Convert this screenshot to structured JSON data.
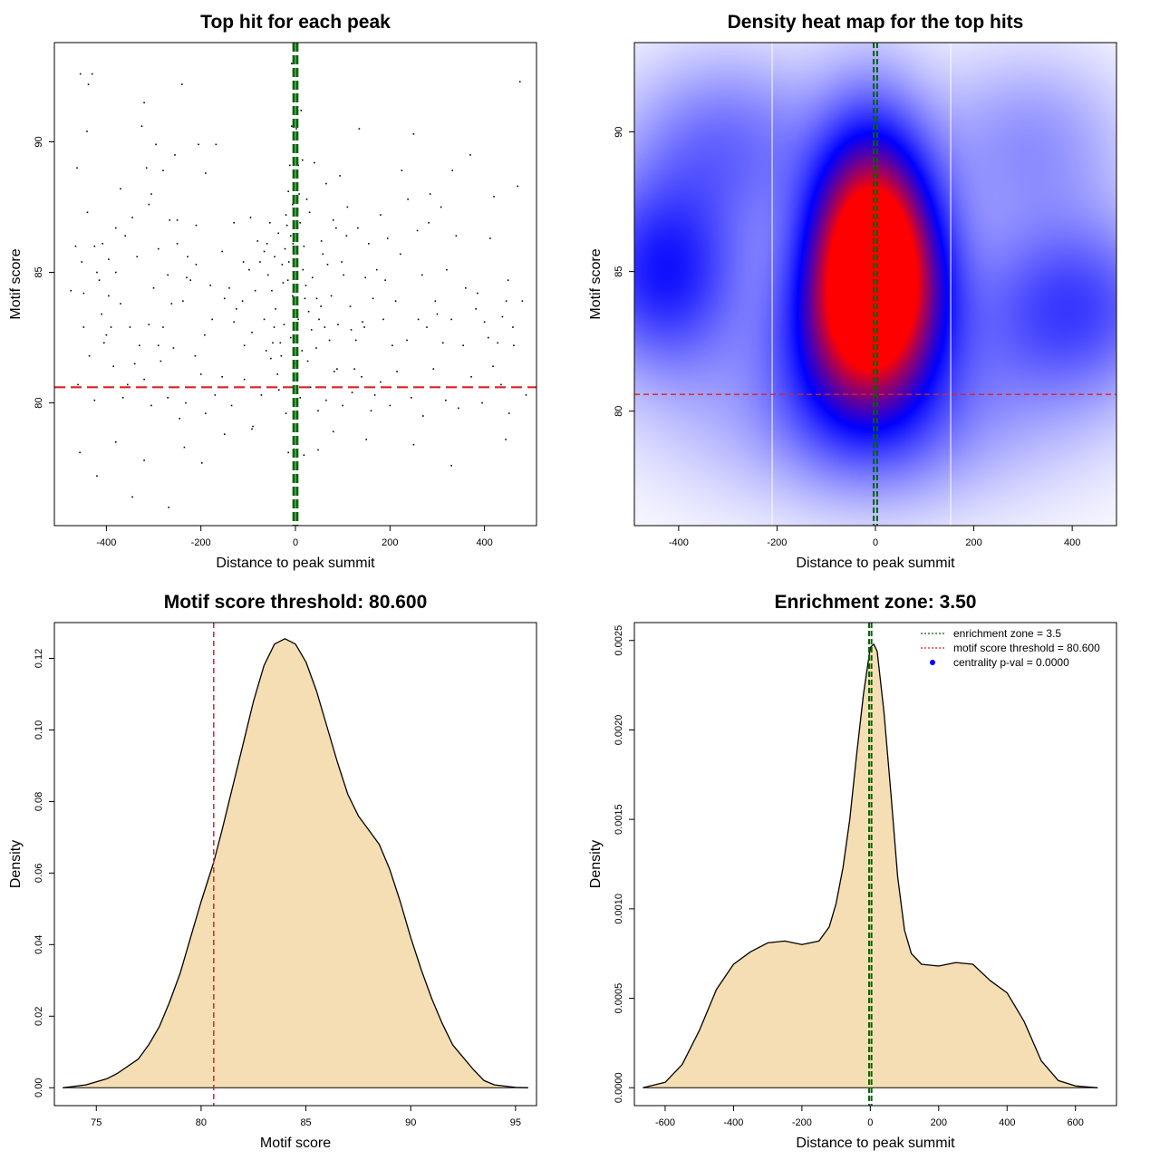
{
  "chart_data": [
    {
      "id": "scatter",
      "type": "scatter",
      "title": "Top hit for each peak",
      "xlabel": "Distance to peak summit",
      "ylabel": "Motif score",
      "xlim": [
        -510,
        510
      ],
      "ylim": [
        75.3,
        93.8
      ],
      "xticks": [
        -400,
        -200,
        0,
        200,
        400
      ],
      "yticks": [
        80,
        85,
        90
      ],
      "lines": {
        "zone_x": [
          -3.5,
          3.5
        ],
        "threshold_y": 80.6,
        "zone_color": "#006400",
        "threshold_color": "#dd2222"
      },
      "points": [
        [
          -455,
          92.6
        ],
        [
          -438,
          92.2
        ],
        [
          -430,
          92.6
        ],
        [
          -441,
          90.4
        ],
        [
          -462,
          89.0
        ],
        [
          -452,
          85.4
        ],
        [
          -440,
          87.3
        ],
        [
          -425,
          86.0
        ],
        [
          -420,
          85.0
        ],
        [
          -408,
          86.1
        ],
        [
          -395,
          84.1
        ],
        [
          -380,
          85.0
        ],
        [
          -370,
          88.2
        ],
        [
          -345,
          87.1
        ],
        [
          -325,
          90.6
        ],
        [
          -320,
          91.5
        ],
        [
          -315,
          89.0
        ],
        [
          -305,
          88.0
        ],
        [
          -295,
          89.9
        ],
        [
          -280,
          88.9
        ],
        [
          -266,
          87.0
        ],
        [
          -255,
          89.5
        ],
        [
          -250,
          87.0
        ],
        [
          -240,
          92.2
        ],
        [
          -228,
          85.6
        ],
        [
          -210,
          85.3
        ],
        [
          -205,
          89.9
        ],
        [
          -190,
          88.8
        ],
        [
          -180,
          84.5
        ],
        [
          -168,
          89.9
        ],
        [
          -155,
          85.8
        ],
        [
          -140,
          84.4
        ],
        [
          -125,
          83.6
        ],
        [
          -108,
          82.2
        ],
        [
          -98,
          85.1
        ],
        [
          -85,
          84.3
        ],
        [
          -75,
          85.4
        ],
        [
          -60,
          86.1
        ],
        [
          -58,
          84.9
        ],
        [
          -50,
          84.3
        ],
        [
          -48,
          82.3
        ],
        [
          -42,
          83.6
        ],
        [
          -38,
          81.1
        ],
        [
          -30,
          81.8
        ],
        [
          -28,
          85.3
        ],
        [
          -22,
          85.9
        ],
        [
          -18,
          86.8
        ],
        [
          -15,
          88.1
        ],
        [
          -12,
          89.1
        ],
        [
          -8,
          90.6
        ],
        [
          -8,
          93.0
        ],
        [
          -5,
          86.1
        ],
        [
          -3,
          83.8
        ],
        [
          -2,
          81.5
        ],
        [
          2,
          90.5
        ],
        [
          5,
          87.4
        ],
        [
          8,
          88.0
        ],
        [
          12,
          91.2
        ],
        [
          15,
          89.3
        ],
        [
          18,
          86.0
        ],
        [
          22,
          84.5
        ],
        [
          26,
          81.6
        ],
        [
          30,
          87.3
        ],
        [
          34,
          82.8
        ],
        [
          40,
          89.2
        ],
        [
          45,
          84.0
        ],
        [
          50,
          83.2
        ],
        [
          58,
          85.7
        ],
        [
          65,
          88.4
        ],
        [
          72,
          82.4
        ],
        [
          80,
          87.0
        ],
        [
          88,
          81.3
        ],
        [
          98,
          85.4
        ],
        [
          108,
          86.4
        ],
        [
          118,
          82.8
        ],
        [
          125,
          81.3
        ],
        [
          135,
          90.5
        ],
        [
          142,
          83.1
        ],
        [
          155,
          86.1
        ],
        [
          168,
          80.3
        ],
        [
          180,
          87.2
        ],
        [
          190,
          84.7
        ],
        [
          205,
          82.2
        ],
        [
          225,
          88.9
        ],
        [
          250,
          90.3
        ],
        [
          268,
          84.9
        ],
        [
          285,
          88.0
        ],
        [
          300,
          83.4
        ],
        [
          320,
          85.1
        ],
        [
          340,
          86.4
        ],
        [
          355,
          82.2
        ],
        [
          370,
          89.5
        ],
        [
          385,
          84.2
        ],
        [
          400,
          83.1
        ],
        [
          412,
          86.3
        ],
        [
          420,
          87.9
        ],
        [
          438,
          83.3
        ],
        [
          450,
          84.7
        ],
        [
          462,
          82.2
        ],
        [
          470,
          88.3
        ],
        [
          475,
          92.3
        ],
        [
          480,
          83.9
        ],
        [
          488,
          80.3
        ],
        [
          -475,
          84.3
        ],
        [
          -460,
          80.7
        ],
        [
          -448,
          82.9
        ],
        [
          -436,
          81.8
        ],
        [
          -425,
          80.1
        ],
        [
          -410,
          83.4
        ],
        [
          -400,
          82.6
        ],
        [
          -385,
          81.4
        ],
        [
          -365,
          80.2
        ],
        [
          -355,
          80.7
        ],
        [
          -340,
          81.5
        ],
        [
          -320,
          80.9
        ],
        [
          -305,
          79.9
        ],
        [
          -285,
          81.6
        ],
        [
          -270,
          80.2
        ],
        [
          -258,
          82.1
        ],
        [
          -245,
          79.4
        ],
        [
          -232,
          80.0
        ],
        [
          -212,
          81.8
        ],
        [
          -200,
          81.1
        ],
        [
          -190,
          79.6
        ],
        [
          -170,
          80.3
        ],
        [
          -155,
          81.0
        ],
        [
          -135,
          79.9
        ],
        [
          -120,
          80.6
        ],
        [
          -108,
          80.9
        ],
        [
          -90,
          79.1
        ],
        [
          -72,
          80.3
        ],
        [
          -52,
          81.7
        ],
        [
          -35,
          80.5
        ],
        [
          -20,
          79.6
        ],
        [
          10,
          80.2
        ],
        [
          32,
          80.6
        ],
        [
          48,
          79.7
        ],
        [
          65,
          80.1
        ],
        [
          82,
          81.2
        ],
        [
          100,
          79.9
        ],
        [
          120,
          80.4
        ],
        [
          140,
          81.0
        ],
        [
          160,
          79.7
        ],
        [
          180,
          80.8
        ],
        [
          200,
          79.9
        ],
        [
          215,
          81.2
        ],
        [
          245,
          80.2
        ],
        [
          270,
          79.5
        ],
        [
          292,
          81.3
        ],
        [
          318,
          80.1
        ],
        [
          345,
          79.8
        ],
        [
          372,
          81.0
        ],
        [
          395,
          80.0
        ],
        [
          418,
          81.4
        ],
        [
          435,
          80.7
        ],
        [
          452,
          79.6
        ],
        [
          -456,
          78.1
        ],
        [
          -420,
          77.2
        ],
        [
          -380,
          78.5
        ],
        [
          -345,
          76.4
        ],
        [
          -320,
          77.8
        ],
        [
          -268,
          76.0
        ],
        [
          -235,
          78.3
        ],
        [
          -198,
          77.7
        ],
        [
          -150,
          78.8
        ],
        [
          -92,
          79.0
        ],
        [
          -15,
          78.1
        ],
        [
          18,
          78.0
        ],
        [
          48,
          78.2
        ],
        [
          80,
          78.9
        ],
        [
          150,
          78.6
        ],
        [
          250,
          78.4
        ],
        [
          330,
          77.6
        ],
        [
          445,
          78.6
        ],
        [
          -300,
          84.4
        ],
        [
          -280,
          82.9
        ],
        [
          -262,
          83.8
        ],
        [
          -238,
          83.9
        ],
        [
          -222,
          84.7
        ],
        [
          -192,
          82.6
        ],
        [
          -176,
          83.2
        ],
        [
          -150,
          84.0
        ],
        [
          -130,
          83.1
        ],
        [
          -112,
          83.9
        ],
        [
          -92,
          82.7
        ],
        [
          -66,
          83.2
        ],
        [
          -62,
          82.0
        ],
        [
          -45,
          82.9
        ],
        [
          -32,
          82.3
        ],
        [
          -24,
          83.0
        ],
        [
          -16,
          84.7
        ],
        [
          -10,
          82.5
        ],
        [
          -6,
          84.1
        ],
        [
          6,
          83.2
        ],
        [
          14,
          82.0
        ],
        [
          20,
          84.0
        ],
        [
          28,
          83.5
        ],
        [
          36,
          84.8
        ],
        [
          44,
          82.1
        ],
        [
          54,
          83.7
        ],
        [
          62,
          82.9
        ],
        [
          76,
          84.1
        ],
        [
          90,
          83.0
        ],
        [
          102,
          84.9
        ],
        [
          116,
          83.7
        ],
        [
          128,
          82.4
        ],
        [
          146,
          82.9
        ],
        [
          164,
          84.0
        ],
        [
          186,
          83.2
        ],
        [
          212,
          83.9
        ],
        [
          236,
          82.4
        ],
        [
          260,
          83.2
        ],
        [
          278,
          82.9
        ],
        [
          296,
          83.9
        ],
        [
          312,
          82.3
        ],
        [
          330,
          83.2
        ],
        [
          360,
          84.4
        ],
        [
          382,
          83.6
        ],
        [
          408,
          82.5
        ],
        [
          428,
          82.3
        ],
        [
          446,
          83.9
        ],
        [
          460,
          82.9
        ],
        [
          -6,
          87.6
        ],
        [
          -10,
          86.4
        ],
        [
          -14,
          85.4
        ],
        [
          -4,
          88.8
        ],
        [
          6,
          89.1
        ],
        [
          10,
          86.9
        ],
        [
          16,
          85.1
        ],
        [
          24,
          87.8
        ],
        [
          -20,
          87.2
        ],
        [
          -26,
          84.6
        ],
        [
          -36,
          86.5
        ],
        [
          -44,
          85.6
        ],
        [
          -54,
          86.9
        ],
        [
          -66,
          85.8
        ],
        [
          -80,
          86.2
        ],
        [
          -95,
          87.1
        ],
        [
          -110,
          85.4
        ],
        [
          -130,
          86.9
        ],
        [
          55,
          86.2
        ],
        [
          68,
          85.3
        ],
        [
          86,
          86.7
        ],
        [
          94,
          88.7
        ],
        [
          110,
          87.5
        ],
        [
          132,
          86.7
        ],
        [
          148,
          84.8
        ],
        [
          172,
          85.1
        ],
        [
          195,
          86.3
        ],
        [
          222,
          85.7
        ],
        [
          238,
          87.8
        ],
        [
          258,
          86.6
        ],
        [
          282,
          86.9
        ],
        [
          308,
          87.5
        ],
        [
          332,
          88.9
        ],
        [
          -360,
          86.4
        ],
        [
          -335,
          85.6
        ],
        [
          -310,
          87.6
        ],
        [
          -290,
          85.9
        ],
        [
          -270,
          84.9
        ],
        [
          -250,
          86.1
        ],
        [
          -230,
          84.8
        ],
        [
          -210,
          86.8
        ],
        [
          -415,
          84.7
        ],
        [
          -395,
          85.5
        ],
        [
          -380,
          86.7
        ],
        [
          -465,
          86.0
        ],
        [
          -448,
          84.2
        ],
        [
          -405,
          82.3
        ],
        [
          -390,
          82.9
        ],
        [
          -370,
          83.8
        ],
        [
          -350,
          82.9
        ],
        [
          -330,
          82.2
        ],
        [
          -310,
          83.0
        ],
        [
          -290,
          82.2
        ]
      ]
    },
    {
      "id": "heatmap",
      "type": "heatmap",
      "title": "Density heat map for the top hits",
      "xlabel": "Distance to peak summit",
      "ylabel": "Motif score",
      "xlim": [
        -490,
        490
      ],
      "ylim": [
        75.9,
        93.2
      ],
      "xticks": [
        -400,
        -200,
        0,
        200,
        400
      ],
      "yticks": [
        80,
        85,
        90
      ],
      "colors": [
        "#ffffff",
        "#0000ff",
        "#ff0000"
      ],
      "lines": {
        "zone_x": [
          -3.5,
          3.5
        ],
        "threshold_y": 80.6,
        "zone_color": "#006400",
        "threshold_color": "#dd2222"
      }
    },
    {
      "id": "density-score",
      "type": "area",
      "title": "Motif score threshold: 80.600",
      "xlabel": "Motif score",
      "ylabel": "Density",
      "xlim": [
        73.0,
        96.0
      ],
      "ylim": [
        -0.005,
        0.13
      ],
      "xticks": [
        75,
        80,
        85,
        90,
        95
      ],
      "yticks": [
        0.0,
        0.02,
        0.04,
        0.06,
        0.08,
        0.1,
        0.12
      ],
      "ytick_labels": [
        "0.00",
        "0.02",
        "0.04",
        "0.06",
        "0.08",
        "0.10",
        "0.12"
      ],
      "fill": "#f5deb3",
      "threshold_x": 80.6,
      "threshold_color": "#dd2222",
      "x": [
        73.4,
        74.5,
        75.5,
        76.0,
        77.0,
        77.5,
        78.0,
        78.5,
        79.0,
        79.5,
        80.0,
        80.6,
        81.0,
        81.5,
        82.0,
        82.5,
        83.0,
        83.5,
        84.0,
        84.5,
        85.0,
        85.5,
        86.0,
        86.5,
        87.0,
        87.5,
        88.0,
        88.5,
        89.0,
        89.5,
        90.0,
        90.5,
        91.0,
        91.5,
        92.0,
        92.5,
        93.0,
        93.5,
        94.0,
        95.0,
        95.6
      ],
      "y": [
        0.0,
        0.0008,
        0.0025,
        0.004,
        0.008,
        0.012,
        0.017,
        0.024,
        0.032,
        0.042,
        0.052,
        0.063,
        0.072,
        0.084,
        0.096,
        0.108,
        0.118,
        0.124,
        0.1255,
        0.124,
        0.119,
        0.111,
        0.101,
        0.091,
        0.082,
        0.076,
        0.072,
        0.068,
        0.061,
        0.052,
        0.042,
        0.033,
        0.025,
        0.018,
        0.012,
        0.0085,
        0.005,
        0.002,
        0.0008,
        0.0001,
        0.0
      ]
    },
    {
      "id": "density-distance",
      "type": "area",
      "title": "Enrichment zone: 3.50",
      "xlabel": "Distance to peak summit",
      "ylabel": "Density",
      "xlim": [
        -690,
        720
      ],
      "ylim": [
        -0.0001,
        0.0026
      ],
      "xticks": [
        -600,
        -400,
        -200,
        0,
        200,
        400,
        600
      ],
      "yticks": [
        0.0,
        0.0005,
        0.001,
        0.0015,
        0.002,
        0.0025
      ],
      "ytick_labels": [
        "0.0000",
        "0.0005",
        "0.0010",
        "0.0015",
        "0.0020",
        "0.0025"
      ],
      "fill": "#f5deb3",
      "zone_x": [
        -3.5,
        3.5
      ],
      "zone_color": "#006400",
      "x": [
        -665,
        -600,
        -550,
        -500,
        -450,
        -400,
        -350,
        -300,
        -250,
        -200,
        -150,
        -120,
        -100,
        -80,
        -60,
        -40,
        -20,
        0,
        10,
        20,
        40,
        60,
        80,
        100,
        120,
        150,
        200,
        250,
        300,
        350,
        400,
        450,
        500,
        550,
        600,
        665
      ],
      "y": [
        0.0,
        3e-05,
        0.00013,
        0.00032,
        0.00055,
        0.00069,
        0.00076,
        0.00081,
        0.00082,
        0.0008,
        0.00082,
        0.0009,
        0.00103,
        0.00123,
        0.0015,
        0.00186,
        0.0022,
        0.00246,
        0.00248,
        0.00244,
        0.0021,
        0.00165,
        0.00118,
        0.00088,
        0.00075,
        0.00069,
        0.00068,
        0.0007,
        0.00069,
        0.0006,
        0.00053,
        0.00037,
        0.00015,
        4e-05,
        1e-05,
        0.0
      ],
      "legend": {
        "placement": "top-right",
        "entries": [
          {
            "label": "enrichment zone = 3.5",
            "color": "#006400",
            "kind": "dotted"
          },
          {
            "label": "motif score threshold = 80.600",
            "color": "#dd2222",
            "kind": "dotted"
          },
          {
            "label": "centrality p-val = 0.0000",
            "color": "#0000ff",
            "kind": "dot"
          }
        ]
      }
    }
  ]
}
